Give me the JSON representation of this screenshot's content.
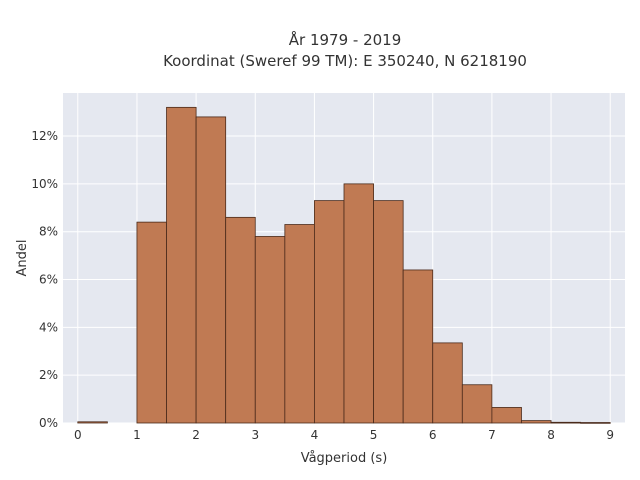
{
  "chart_data": {
    "type": "bar",
    "title": "År 1979 - 2019",
    "subtitle": "Koordinat (Sweref 99 TM): E 350240, N 6218190",
    "xlabel": "Vågperiod (s)",
    "ylabel": "Andel",
    "bin_width": 0.5,
    "xlim": [
      -0.25,
      9.25
    ],
    "ylim": [
      0,
      13.8
    ],
    "x_ticks": [
      0,
      1,
      2,
      3,
      4,
      5,
      6,
      7,
      8,
      9
    ],
    "y_ticks": [
      0,
      2,
      4,
      6,
      8,
      10,
      12
    ],
    "y_tick_labels": [
      "0%",
      "2%",
      "4%",
      "6%",
      "8%",
      "10%",
      "12%"
    ],
    "bins": [
      {
        "x0": 0.0,
        "value": 0.05
      },
      {
        "x0": 0.5,
        "value": 0.0
      },
      {
        "x0": 1.0,
        "value": 8.4
      },
      {
        "x0": 1.5,
        "value": 13.2
      },
      {
        "x0": 2.0,
        "value": 12.8
      },
      {
        "x0": 2.5,
        "value": 8.6
      },
      {
        "x0": 3.0,
        "value": 7.8
      },
      {
        "x0": 3.5,
        "value": 8.3
      },
      {
        "x0": 4.0,
        "value": 9.3
      },
      {
        "x0": 4.5,
        "value": 10.0
      },
      {
        "x0": 5.0,
        "value": 9.3
      },
      {
        "x0": 5.5,
        "value": 6.4
      },
      {
        "x0": 6.0,
        "value": 3.35
      },
      {
        "x0": 6.5,
        "value": 1.6
      },
      {
        "x0": 7.0,
        "value": 0.65
      },
      {
        "x0": 7.5,
        "value": 0.1
      },
      {
        "x0": 8.0,
        "value": 0.03
      },
      {
        "x0": 8.5,
        "value": 0.02
      }
    ],
    "grid": true,
    "colors": {
      "bar_fill": "#c07a53",
      "bar_stroke": "#4a2a1a",
      "plot_background": "#e5e8f0",
      "grid": "#ffffff"
    }
  }
}
